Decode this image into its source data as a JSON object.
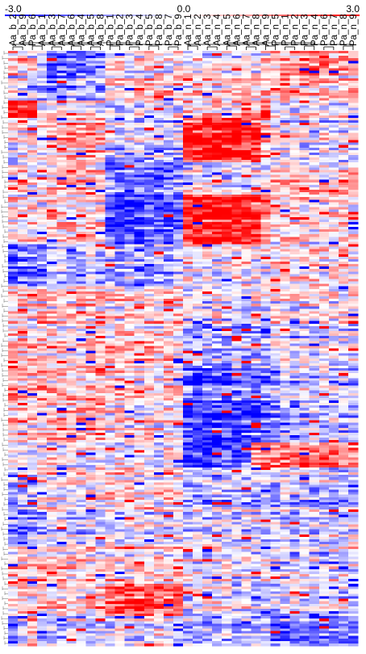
{
  "chart_data": {
    "type": "heatmap",
    "title": "",
    "xlabel": "",
    "ylabel": "",
    "color_scale": {
      "min": -3.0,
      "mid": 0.0,
      "max": 3.0,
      "min_label": "-3.0",
      "mid_label": "0.0",
      "max_label": "3.0",
      "low_color": "#0000ff",
      "mid_color": "#ffffff",
      "high_color": "#ff0000"
    },
    "columns": [
      "Aa_b_2",
      "Aa_b_9",
      "Pa_b_6",
      "Aa_b_1",
      "Aa_b_3",
      "Aa_b_7",
      "Aa_b_6",
      "Aa_b_4",
      "Aa_b_5",
      "Aa_b_8",
      "Pa_b_1",
      "Pa_b_2",
      "Pa_b_3",
      "Pa_b_4",
      "Pa_b_5",
      "Pa_b_8",
      "Pa_b_7",
      "Pa_b_9",
      "Aa_n_1",
      "Aa_n_2",
      "Aa_n_3",
      "Aa_n_4",
      "Aa_n_5",
      "Aa_n_6",
      "Aa_n_7",
      "Aa_n_8",
      "Aa_n_9",
      "Pa_n_5",
      "Pa_n_1",
      "Pa_n_2",
      "Pa_n_3",
      "Pa_n_4",
      "Pa_n_6",
      "Pa_n_7",
      "Pa_n_8",
      "Pa_n_9"
    ],
    "row_count": 240,
    "dendrograms": {
      "columns": true,
      "rows": true
    },
    "grid": false,
    "legend": "top",
    "blocks": [
      {
        "rows": [
          0,
          10
        ],
        "values": [
          1.0,
          0.5,
          0.3,
          -0.3,
          -1.5,
          -1.8,
          -1.6,
          -1.7,
          -1.5,
          -1.4,
          0.2,
          0.3,
          0.1,
          0.2,
          0.4,
          0.3,
          0.2,
          0.3,
          0.1,
          0.2,
          0.1,
          0.2,
          0.3,
          0.1,
          0.2,
          0.1,
          0.2,
          0.6,
          0.9,
          1.1,
          1.4,
          1.5,
          1.6,
          1.4,
          1.5,
          1.4
        ]
      },
      {
        "rows": [
          10,
          20
        ],
        "values": [
          -0.2,
          0.0,
          -0.4,
          -1.0,
          -1.6,
          -1.2,
          -1.0,
          -1.3,
          -0.9,
          -1.1,
          0.6,
          0.7,
          0.4,
          0.8,
          0.5,
          0.7,
          0.6,
          0.8,
          0.5,
          0.6,
          0.5,
          0.4,
          0.6,
          0.5,
          0.4,
          0.5,
          0.4,
          0.2,
          0.6,
          0.7,
          0.8,
          0.6,
          0.7,
          0.6,
          0.5,
          0.6
        ]
      },
      {
        "rows": [
          20,
          27
        ],
        "values": [
          3.0,
          3.0,
          2.8,
          0.2,
          0.4,
          0.3,
          0.1,
          0.4,
          0.5,
          0.3,
          -0.2,
          0.0,
          0.1,
          -0.1,
          0.2,
          0.0,
          0.1,
          0.0,
          0.8,
          0.6,
          0.7,
          0.8,
          0.5,
          0.6,
          2.2,
          0.6,
          2.5,
          0.2,
          0.1,
          0.0,
          0.1,
          0.2,
          0.0,
          0.1,
          0.0,
          0.1
        ]
      },
      {
        "rows": [
          27,
          45
        ],
        "values": [
          -0.2,
          0.1,
          0.0,
          0.4,
          0.7,
          0.9,
          1.1,
          0.8,
          1.2,
          0.7,
          -0.5,
          -0.8,
          -0.6,
          -0.9,
          -0.7,
          -0.5,
          -0.8,
          -0.9,
          2.4,
          2.6,
          2.8,
          2.7,
          2.9,
          2.8,
          2.7,
          2.4,
          1.0,
          -0.3,
          -0.2,
          0.0,
          -0.4,
          -0.3,
          -0.2,
          -0.4,
          -0.5,
          -0.3
        ]
      },
      {
        "rows": [
          45,
          58
        ],
        "values": [
          0.1,
          0.3,
          0.0,
          -0.2,
          0.4,
          0.5,
          0.3,
          0.6,
          0.4,
          0.2,
          -1.6,
          -1.9,
          -2.1,
          -1.8,
          -1.5,
          -1.7,
          -1.3,
          -1.6,
          -0.5,
          -0.4,
          -0.6,
          -0.3,
          -0.5,
          -0.4,
          -0.6,
          -0.3,
          -0.4,
          0.3,
          0.4,
          0.5,
          0.3,
          0.2,
          0.4,
          0.3,
          0.2,
          0.6
        ]
      },
      {
        "rows": [
          58,
          78
        ],
        "values": [
          0.4,
          0.2,
          0.5,
          0.3,
          0.6,
          0.5,
          0.4,
          0.3,
          0.5,
          0.4,
          -2.2,
          -2.5,
          -2.4,
          -2.3,
          -2.0,
          -2.2,
          -2.1,
          -1.8,
          2.6,
          2.8,
          2.7,
          2.9,
          2.8,
          2.7,
          2.6,
          2.5,
          1.4,
          0.3,
          0.2,
          0.4,
          0.3,
          0.1,
          0.3,
          0.2,
          0.4,
          0.3
        ]
      },
      {
        "rows": [
          78,
          95
        ],
        "values": [
          -1.8,
          -1.6,
          -1.5,
          -1.2,
          -0.8,
          -0.4,
          -0.6,
          -0.5,
          -0.2,
          -0.7,
          -0.8,
          -1.0,
          -0.7,
          -0.9,
          -1.1,
          -0.6,
          -0.8,
          -0.5,
          0.2,
          0.1,
          0.3,
          0.0,
          0.2,
          0.1,
          0.3,
          0.2,
          0.1,
          0.5,
          0.6,
          0.4,
          0.5,
          0.7,
          0.4,
          0.6,
          0.5,
          0.4
        ]
      },
      {
        "rows": [
          95,
          110
        ],
        "values": [
          0.3,
          0.5,
          0.2,
          0.6,
          0.4,
          0.7,
          0.5,
          0.8,
          0.6,
          0.7,
          0.2,
          0.4,
          0.3,
          0.5,
          0.2,
          0.4,
          0.3,
          0.5,
          -0.3,
          -0.2,
          -0.4,
          -0.1,
          -0.3,
          -0.2,
          -0.4,
          -0.1,
          -0.2,
          0.1,
          0.3,
          0.0,
          0.2,
          0.1,
          0.0,
          0.2,
          0.1,
          0.3
        ]
      },
      {
        "rows": [
          110,
          128
        ],
        "values": [
          0.5,
          0.7,
          0.6,
          0.4,
          0.6,
          0.5,
          0.7,
          0.6,
          0.5,
          0.6,
          0.5,
          0.6,
          0.7,
          0.5,
          0.6,
          0.4,
          0.6,
          0.5,
          -0.7,
          -0.9,
          -0.8,
          -1.0,
          -0.8,
          -0.7,
          -0.9,
          -0.8,
          -0.6,
          -0.4,
          -0.3,
          -0.5,
          -0.2,
          -0.4,
          -0.3,
          -0.5,
          -0.4,
          -0.3
        ]
      },
      {
        "rows": [
          128,
          142
        ],
        "values": [
          1.0,
          1.2,
          0.8,
          0.9,
          0.7,
          1.0,
          0.6,
          0.8,
          0.7,
          0.9,
          0.4,
          0.6,
          0.5,
          0.3,
          0.6,
          0.4,
          0.5,
          0.3,
          -1.9,
          -2.2,
          -2.0,
          -1.8,
          -2.1,
          -1.7,
          -1.9,
          -1.6,
          -1.5,
          -0.7,
          -0.6,
          -0.8,
          -0.5,
          -0.7,
          -0.6,
          -0.8,
          -0.5,
          -0.7
        ]
      },
      {
        "rows": [
          142,
          158
        ],
        "values": [
          0.3,
          0.5,
          0.4,
          0.6,
          0.8,
          0.9,
          1.0,
          0.8,
          0.9,
          1.1,
          0.3,
          0.2,
          0.4,
          0.1,
          0.3,
          0.2,
          0.4,
          0.2,
          -2.3,
          -2.6,
          -2.5,
          -2.4,
          -2.2,
          -2.4,
          -2.1,
          -2.0,
          -1.8,
          -0.9,
          -0.7,
          -1.0,
          -0.8,
          -0.6,
          -0.9,
          -0.7,
          -0.8,
          -0.6
        ]
      },
      {
        "rows": [
          158,
          168
        ],
        "values": [
          0.1,
          0.0,
          0.2,
          -0.1,
          0.1,
          0.0,
          0.2,
          0.1,
          0.0,
          0.1,
          0.0,
          0.1,
          -0.1,
          0.2,
          0.0,
          -0.1,
          0.1,
          0.0,
          -2.4,
          -2.2,
          -2.5,
          -2.1,
          -2.0,
          -1.8,
          -1.5,
          1.5,
          1.8,
          1.6,
          1.9,
          2.0,
          1.8,
          1.7,
          1.9,
          2.0,
          1.6,
          1.8
        ]
      },
      {
        "rows": [
          168,
          185
        ],
        "values": [
          -0.8,
          -0.6,
          -0.9,
          0.3,
          0.5,
          0.2,
          0.4,
          0.3,
          0.2,
          0.4,
          0.6,
          0.5,
          0.7,
          0.4,
          0.6,
          0.5,
          0.7,
          0.6,
          -0.9,
          -0.7,
          -1.0,
          -0.6,
          -0.8,
          -0.5,
          -0.7,
          -0.6,
          -0.4,
          -0.8,
          -0.5,
          -0.7,
          -0.6,
          -0.9,
          -0.5,
          -0.8,
          -0.6,
          -0.7
        ]
      },
      {
        "rows": [
          185,
          200
        ],
        "values": [
          -1.2,
          -1.5,
          -1.0,
          -0.6,
          -0.4,
          -0.5,
          -0.3,
          -0.6,
          -0.4,
          -0.5,
          -0.2,
          -0.1,
          -0.3,
          0.0,
          -0.2,
          -0.1,
          -0.3,
          -0.1,
          -0.5,
          -0.3,
          -0.6,
          -0.2,
          -0.4,
          -0.3,
          -0.5,
          -0.2,
          -0.3,
          -0.6,
          -0.4,
          -0.7,
          -0.5,
          -0.3,
          -0.6,
          -0.4,
          -0.5,
          -0.3
        ]
      },
      {
        "rows": [
          200,
          215
        ],
        "values": [
          0.5,
          0.6,
          0.4,
          0.7,
          0.5,
          0.6,
          0.4,
          0.5,
          0.6,
          0.4,
          0.3,
          0.5,
          0.2,
          0.4,
          0.3,
          0.5,
          0.2,
          0.3,
          -0.4,
          -0.2,
          -0.5,
          -0.3,
          -0.1,
          -0.4,
          -0.2,
          -0.3,
          -0.1,
          -0.5,
          -0.3,
          -0.6,
          -0.4,
          -0.2,
          -0.5,
          -0.3,
          -0.4,
          -0.2
        ]
      },
      {
        "rows": [
          215,
          228
        ],
        "values": [
          0.2,
          0.4,
          0.1,
          0.3,
          0.2,
          0.4,
          0.3,
          0.2,
          0.4,
          0.3,
          1.8,
          2.0,
          2.2,
          1.9,
          2.1,
          1.7,
          2.0,
          1.8,
          -0.6,
          -0.3,
          -0.5,
          -0.2,
          -0.4,
          -0.6,
          -0.3,
          -0.5,
          -0.4,
          -0.7,
          -0.4,
          -0.6,
          -0.5,
          -0.3,
          -0.6,
          -0.4,
          -0.5,
          -0.7
        ]
      },
      {
        "rows": [
          228,
          240
        ],
        "values": [
          -1.4,
          -0.6,
          1.2,
          -0.5,
          -0.3,
          -0.6,
          -0.2,
          -0.4,
          -0.5,
          -0.3,
          -0.2,
          0.1,
          -0.3,
          0.0,
          -0.2,
          0.1,
          -0.1,
          0.0,
          -0.8,
          -0.5,
          -0.9,
          -0.6,
          -0.4,
          -0.7,
          -0.5,
          -0.6,
          -0.8,
          -1.5,
          -1.2,
          -1.6,
          -1.3,
          -1.1,
          -1.4,
          -1.2,
          -1.5,
          -1.3
        ]
      }
    ]
  }
}
